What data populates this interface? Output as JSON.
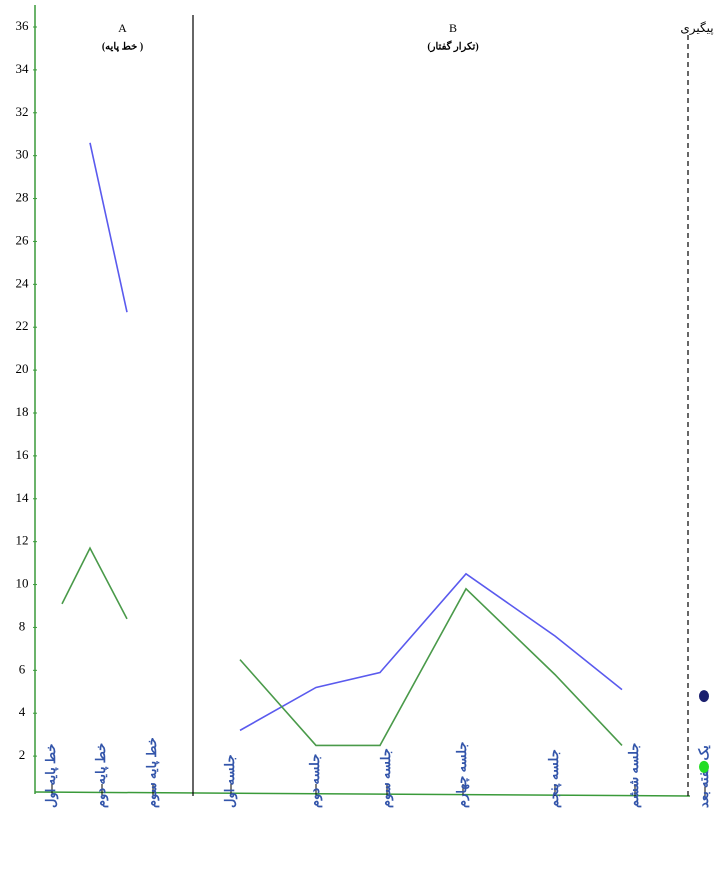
{
  "chart_data": {
    "type": "line",
    "categories": [
      "خط پایه اول",
      "خط پایه دوم",
      "خط پایه سوم",
      "جلسه اول",
      "جلسه دوم",
      "جلسه سوم",
      "جلسه چهارم",
      "جلسه پنجم",
      "جلسه ششم",
      "یک هفته بعد"
    ],
    "phases": [
      {
        "label": "A",
        "sublabel": "(خط پایه )",
        "count": 3
      },
      {
        "label": "B",
        "sublabel": "(تکرار گفتار)",
        "count": 6
      },
      {
        "label": "پیگیری",
        "count": 1
      }
    ],
    "series": [
      {
        "color": "#5a5aee",
        "marker_color": "#1a1f6e",
        "values": [
          null,
          30.6,
          22.7,
          3.2,
          5.2,
          5.9,
          10.5,
          7.6,
          5.1,
          4.8
        ]
      },
      {
        "color": "#4a9a4a",
        "marker_color": "#22dd22",
        "values": [
          9.1,
          11.7,
          8.4,
          6.5,
          2.5,
          2.5,
          9.8,
          5.8,
          2.5,
          1.5
        ]
      }
    ],
    "ylim": [
      0,
      36
    ],
    "yticks": [
      2,
      4,
      6,
      8,
      10,
      12,
      14,
      16,
      18,
      20,
      22,
      24,
      26,
      28,
      30,
      32,
      34,
      36
    ]
  }
}
